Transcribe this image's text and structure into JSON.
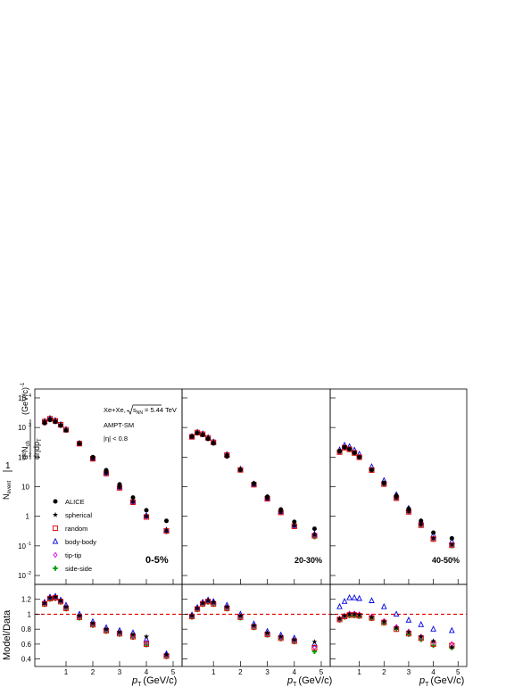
{
  "labels": {
    "y_top_num": "1",
    "y_top_nevent": "N",
    "y_top_nevent_sub": "event",
    "y_top_num2": "d²N",
    "y_top_num2_sub": "ch",
    "y_top_den": "dηdp",
    "y_top_den_sub": "T",
    "y_top_unit": "(GeV/c)",
    "y_top_unit_sup": "-1",
    "y_bottom": "Model/Data",
    "x_label": "p",
    "x_label_sub": "T",
    "x_unit": "(GeV/c)"
  },
  "annotations": {
    "system": "Xe+Xe,",
    "sqrt_s": "s",
    "sqrt_s_sub": "NN",
    "energy": "= 5.44 TeV",
    "model": "AMPT-SM",
    "eta": "|η| < 0.8"
  },
  "centralities": [
    "0-5%",
    "20-30%",
    "40-50%"
  ],
  "legend": [
    {
      "name": "ALICE",
      "marker": "circle-filled",
      "color": "#000000"
    },
    {
      "name": "spherical",
      "marker": "star-filled",
      "color": "#000000"
    },
    {
      "name": "random",
      "marker": "square-open",
      "color": "#e00000"
    },
    {
      "name": "body-body",
      "marker": "triangle-open",
      "color": "#0000e0"
    },
    {
      "name": "tip-tip",
      "marker": "diamond-open",
      "color": "#e000e0"
    },
    {
      "name": "side-side",
      "marker": "cross-filled",
      "color": "#00a000"
    }
  ],
  "axis_ticks": {
    "x": [
      "1",
      "2",
      "3",
      "4",
      "5"
    ],
    "y_top": [
      "10",
      "10",
      "10",
      "10",
      "1",
      "10",
      "10"
    ],
    "y_top_exp": [
      "4",
      "3",
      "2",
      "",
      "",
      "-1",
      "-2"
    ],
    "y_bottom": [
      "1.2",
      "1",
      "0.8",
      "0.6",
      "0.4"
    ]
  },
  "chart_data": {
    "type": "scatter",
    "xlim": [
      0,
      5.1
    ],
    "ylim_top": [
      0.005,
      20000
    ],
    "ylim_bottom": [
      0.3,
      1.4
    ],
    "y_scale_top": "log",
    "reference_line": 1,
    "x": [
      0.2,
      0.4,
      0.6,
      0.8,
      1.0,
      1.5,
      2.0,
      2.5,
      3.0,
      3.5,
      4.0,
      4.75
    ],
    "spectra": [
      {
        "centrality": "0-5%",
        "ALICE": [
          1400,
          1800,
          1550,
          1150,
          800,
          290,
          100,
          36,
          12,
          4.3,
          1.6,
          0.7
        ],
        "models": {
          "spherical": [
            1600,
            2000,
            1700,
            1250,
            850,
            290,
            90,
            29,
            9.5,
            3.1,
            1.0,
            0.33
          ],
          "random": [
            1580,
            1980,
            1680,
            1240,
            840,
            285,
            88,
            28,
            9.2,
            3.0,
            0.95,
            0.32
          ],
          "body-body": [
            1620,
            2020,
            1720,
            1260,
            860,
            292,
            92,
            30,
            9.8,
            3.2,
            1.05,
            0.34
          ],
          "tip-tip": [
            1590,
            1990,
            1690,
            1245,
            845,
            286,
            89,
            28.5,
            9.3,
            3.0,
            0.97,
            0.32
          ],
          "side-side": [
            1560,
            1970,
            1670,
            1230,
            835,
            282,
            86,
            27,
            9.0,
            2.9,
            0.93,
            0.3
          ]
        }
      },
      {
        "centrality": "20-30%",
        "ALICE": [
          500,
          650,
          560,
          410,
          290,
          105,
          37,
          13,
          4.6,
          1.7,
          0.65,
          0.38
        ],
        "models": {
          "spherical": [
            490,
            680,
            600,
            450,
            320,
            120,
            38,
            12,
            4.0,
            1.4,
            0.48,
            0.24
          ],
          "random": [
            485,
            675,
            595,
            445,
            315,
            118,
            37,
            11.7,
            3.9,
            1.35,
            0.46,
            0.22
          ],
          "body-body": [
            495,
            690,
            610,
            455,
            325,
            122,
            39,
            12.3,
            4.1,
            1.45,
            0.5,
            0.25
          ],
          "tip-tip": [
            488,
            678,
            598,
            448,
            318,
            119,
            37.5,
            11.8,
            3.95,
            1.38,
            0.47,
            0.23
          ],
          "side-side": [
            480,
            670,
            590,
            440,
            312,
            116,
            36.5,
            11.5,
            3.85,
            1.33,
            0.45,
            0.2
          ]
        }
      },
      {
        "centrality": "40-50%",
        "ALICE": [
          160,
          215,
          185,
          140,
          100,
          37,
          13.5,
          5.0,
          1.8,
          0.7,
          0.28,
          0.18
        ],
        "models": {
          "spherical": [
            150,
            210,
            185,
            140,
            100,
            37,
            12.5,
            4.2,
            1.45,
            0.52,
            0.18,
            0.11
          ],
          "random": [
            148,
            208,
            183,
            138,
            99,
            36.5,
            12.3,
            4.1,
            1.42,
            0.5,
            0.17,
            0.105
          ],
          "body-body": [
            175,
            250,
            225,
            172,
            125,
            47,
            16,
            5.4,
            1.85,
            0.66,
            0.23,
            0.14
          ],
          "tip-tip": [
            150,
            212,
            187,
            141,
            101,
            37.5,
            12.6,
            4.25,
            1.47,
            0.53,
            0.18,
            0.11
          ],
          "side-side": [
            146,
            205,
            180,
            136,
            97,
            35.5,
            12.0,
            4.0,
            1.38,
            0.49,
            0.165,
            0.1
          ]
        }
      }
    ],
    "ratios": [
      {
        "centrality": "0-5%",
        "models": {
          "spherical": [
            1.15,
            1.22,
            1.23,
            1.18,
            1.1,
            0.98,
            0.88,
            0.8,
            0.76,
            0.73,
            0.7,
            0.46
          ],
          "random": [
            1.14,
            1.21,
            1.22,
            1.17,
            1.08,
            0.96,
            0.86,
            0.78,
            0.74,
            0.7,
            0.6,
            0.44
          ],
          "body-body": [
            1.16,
            1.23,
            1.24,
            1.19,
            1.12,
            1.0,
            0.9,
            0.82,
            0.78,
            0.75,
            0.66,
            0.47
          ],
          "tip-tip": [
            1.15,
            1.22,
            1.23,
            1.18,
            1.09,
            0.97,
            0.87,
            0.79,
            0.75,
            0.71,
            0.62,
            0.45
          ],
          "side-side": [
            1.13,
            1.2,
            1.21,
            1.16,
            1.07,
            0.95,
            0.85,
            0.77,
            0.73,
            0.69,
            0.59,
            0.43
          ]
        }
      },
      {
        "centrality": "20-30%",
        "models": {
          "spherical": [
            0.98,
            1.08,
            1.15,
            1.18,
            1.16,
            1.1,
            0.98,
            0.85,
            0.75,
            0.7,
            0.66,
            0.63
          ],
          "random": [
            0.97,
            1.07,
            1.14,
            1.17,
            1.14,
            1.08,
            0.96,
            0.83,
            0.73,
            0.68,
            0.64,
            0.55
          ],
          "body-body": [
            0.99,
            1.09,
            1.16,
            1.19,
            1.17,
            1.12,
            1.0,
            0.87,
            0.77,
            0.72,
            0.68,
            0.6
          ],
          "tip-tip": [
            0.98,
            1.08,
            1.15,
            1.18,
            1.15,
            1.09,
            0.97,
            0.84,
            0.74,
            0.69,
            0.65,
            0.56
          ],
          "side-side": [
            0.96,
            1.06,
            1.13,
            1.16,
            1.13,
            1.07,
            0.95,
            0.82,
            0.72,
            0.67,
            0.63,
            0.5
          ]
        }
      },
      {
        "centrality": "40-50%",
        "models": {
          "spherical": [
            0.94,
            0.98,
            1.0,
            1.0,
            0.99,
            0.96,
            0.9,
            0.82,
            0.76,
            0.7,
            0.64,
            0.56
          ],
          "random": [
            0.93,
            0.97,
            0.99,
            0.99,
            0.98,
            0.95,
            0.89,
            0.8,
            0.74,
            0.68,
            0.6,
            0.58
          ],
          "body-body": [
            1.1,
            1.17,
            1.22,
            1.22,
            1.21,
            1.18,
            1.1,
            1.0,
            0.92,
            0.86,
            0.8,
            0.78
          ],
          "tip-tip": [
            0.94,
            0.98,
            1.01,
            1.01,
            1.0,
            0.97,
            0.91,
            0.83,
            0.77,
            0.7,
            0.63,
            0.6
          ],
          "side-side": [
            0.92,
            0.96,
            0.98,
            0.98,
            0.97,
            0.94,
            0.88,
            0.8,
            0.73,
            0.66,
            0.58,
            0.55
          ]
        }
      }
    ]
  }
}
